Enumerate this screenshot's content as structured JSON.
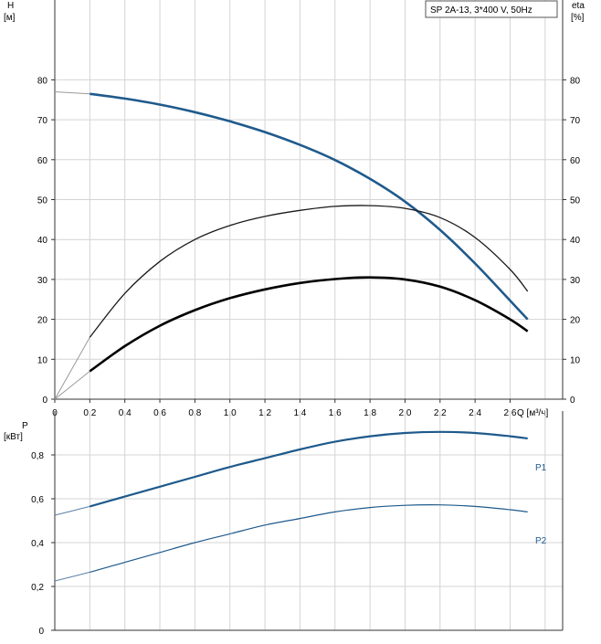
{
  "chart_data": [
    {
      "type": "line",
      "title": "SP 2A-13, 3*400 V, 50Hz",
      "ylabel_left": "H",
      "ylabel_left_unit": "[м]",
      "ylabel_right": "eta",
      "ylabel_right_unit": "[%]",
      "xlabel": "Q [м³/ч]",
      "xlim": [
        0,
        2.9
      ],
      "ylim": [
        0,
        100
      ],
      "x_ticks": [
        "0",
        "0,2",
        "0,4",
        "0,6",
        "0,8",
        "1,0",
        "1,2",
        "1,4",
        "1,6",
        "1,8",
        "2,0",
        "2,2",
        "2,4",
        "2,6"
      ],
      "x_tick_values": [
        0,
        0.2,
        0.4,
        0.6,
        0.8,
        1.0,
        1.2,
        1.4,
        1.6,
        1.8,
        2.0,
        2.2,
        2.4,
        2.6
      ],
      "y_ticks": [
        "0",
        "10",
        "20",
        "30",
        "40",
        "50",
        "60",
        "70",
        "80"
      ],
      "y_tick_values": [
        0,
        10,
        20,
        30,
        40,
        50,
        60,
        70,
        80
      ],
      "grid": true,
      "series": [
        {
          "color": "#1f5a8c",
          "x": [
            0,
            0.2,
            0.4,
            0.6,
            0.8,
            1.0,
            1.2,
            1.4,
            1.6,
            1.8,
            2.0,
            2.2,
            2.4,
            2.6,
            2.7
          ],
          "y": [
            77,
            76.5,
            75.3,
            73.8,
            71.9,
            69.6,
            66.9,
            63.7,
            59.9,
            55.2,
            49.5,
            42.4,
            34.0,
            24.7,
            20
          ]
        },
        {
          "color": "#1a1a1a",
          "x": [
            0,
            0.2,
            0.4,
            0.6,
            0.8,
            1.0,
            1.2,
            1.4,
            1.6,
            1.8,
            2.0,
            2.2,
            2.4,
            2.6,
            2.7
          ],
          "y": [
            0,
            15.5,
            26.5,
            34.5,
            40,
            43.5,
            45.8,
            47.3,
            48.3,
            48.5,
            47.8,
            45.5,
            40.5,
            32.5,
            27
          ]
        },
        {
          "color": "#000000",
          "x": [
            0,
            0.2,
            0.4,
            0.6,
            0.8,
            1.0,
            1.2,
            1.4,
            1.6,
            1.8,
            2.0,
            2.2,
            2.4,
            2.6,
            2.7
          ],
          "y": [
            0,
            7,
            13.3,
            18.4,
            22.3,
            25.3,
            27.5,
            29.1,
            30.1,
            30.5,
            30.0,
            28.2,
            24.8,
            20,
            17
          ]
        }
      ]
    },
    {
      "type": "line",
      "ylabel": "P",
      "ylabel_unit": "[кВт]",
      "xlim": [
        0,
        2.9
      ],
      "ylim": [
        0,
        1.0
      ],
      "y_ticks": [
        "0",
        "0,2",
        "0,4",
        "0,6",
        "0,8"
      ],
      "y_tick_values": [
        0,
        0.2,
        0.4,
        0.6,
        0.8
      ],
      "grid": true,
      "series": [
        {
          "name": "P1",
          "color": "#1f5a8c",
          "x": [
            0,
            0.2,
            0.4,
            0.6,
            0.8,
            1.0,
            1.2,
            1.4,
            1.6,
            1.8,
            2.0,
            2.2,
            2.4,
            2.6,
            2.7
          ],
          "y": [
            0.525,
            0.565,
            0.61,
            0.655,
            0.7,
            0.745,
            0.785,
            0.825,
            0.86,
            0.885,
            0.9,
            0.905,
            0.9,
            0.885,
            0.875
          ]
        },
        {
          "name": "P2",
          "color": "#1f5a8c",
          "x": [
            0,
            0.2,
            0.4,
            0.6,
            0.8,
            1.0,
            1.2,
            1.4,
            1.6,
            1.8,
            2.0,
            2.2,
            2.4,
            2.6,
            2.7
          ],
          "y": [
            0.225,
            0.265,
            0.31,
            0.355,
            0.4,
            0.44,
            0.48,
            0.51,
            0.54,
            0.56,
            0.57,
            0.572,
            0.565,
            0.55,
            0.54
          ]
        }
      ]
    }
  ]
}
